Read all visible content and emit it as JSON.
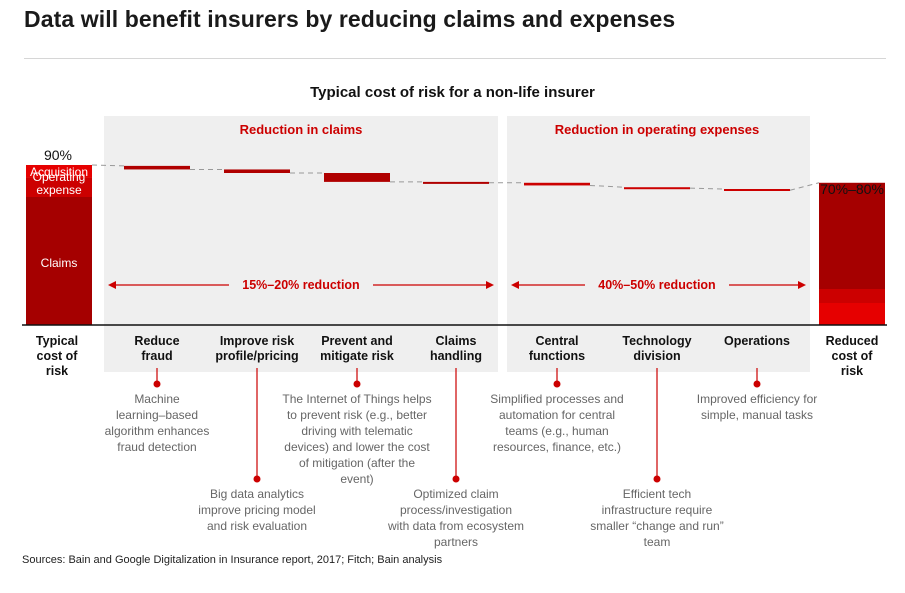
{
  "headline": "Data will benefit insurers by reducing claims and expenses",
  "source": "Sources: Bain and Google Digitalization in Insurance report, 2017; Fitch; Bain analysis",
  "colors": {
    "dark_red": "#a50000",
    "bright_red": "#e60000",
    "mid_red": "#cc0000",
    "panel": "#efefef",
    "grey_text": "#666666"
  },
  "chart_data": {
    "type": "waterfall",
    "title": "Typical cost of risk for a non-life insurer",
    "start": {
      "label": "Typical cost of risk",
      "value_label": "90%",
      "value": 90,
      "segments": [
        {
          "name": "Claims",
          "value": 72
        },
        {
          "name": "Operating expense",
          "value": 11
        },
        {
          "name": "Acquisition",
          "value": 7
        }
      ]
    },
    "end": {
      "label": "Reduced cost of risk",
      "value_label": "70%–80%",
      "low": 70,
      "high": 80
    },
    "groups": [
      {
        "label": "Reduction in claims",
        "range_label": "15%–20% reduction"
      },
      {
        "label": "Reduction in operating expenses",
        "range_label": "40%–50% reduction"
      }
    ],
    "steps": [
      {
        "label": "Reduce fraud",
        "group": 0,
        "top": 89.5,
        "bottom": 87.5,
        "note": "Machine learning–based algorithm enhances fraud detection",
        "note_row": 1
      },
      {
        "label": "Improve risk profile/pricing",
        "group": 0,
        "top": 87.5,
        "bottom": 85.5,
        "note": "Big data analytics improve pricing model and risk evaluation",
        "note_row": 2
      },
      {
        "label": "Prevent and mitigate risk",
        "group": 0,
        "top": 85.5,
        "bottom": 80.5,
        "note": "The Internet of Things helps to prevent risk (e.g., better driving with telematic devices) and lower the cost of mitigation (after the event)",
        "note_row": 1
      },
      {
        "label": "Claims handling",
        "group": 0,
        "top": 80.5,
        "bottom": 80,
        "note": "Optimized claim process/investigation with data from ecosystem partners",
        "note_row": 2
      },
      {
        "label": "Central functions",
        "group": 1,
        "top": 80,
        "bottom": 78.5,
        "note": "Simplified processes and automation for central teams (e.g., human resources, finance, etc.)",
        "note_row": 1
      },
      {
        "label": "Technology division",
        "group": 1,
        "top": 77.5,
        "bottom": 77,
        "note": "Efficient tech infrastructure require smaller “change and run” team",
        "note_row": 2
      },
      {
        "label": "Operations",
        "group": 1,
        "top": 76.5,
        "bottom": 75.8,
        "note": "Improved efficiency for simple, manual tasks",
        "note_row": 1
      }
    ]
  }
}
